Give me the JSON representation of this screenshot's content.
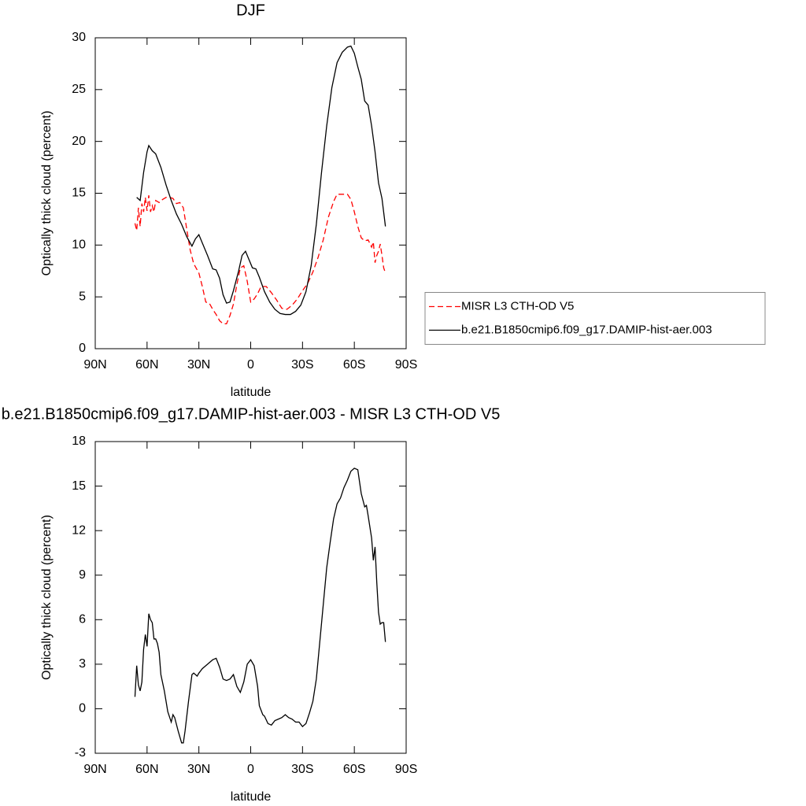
{
  "chart_data": [
    {
      "type": "line",
      "title": "DJF",
      "xlabel": "latitude",
      "ylabel": "Optically thick cloud (percent)",
      "xlim": [
        90,
        -90
      ],
      "ylim": [
        0,
        30
      ],
      "xticks": [
        {
          "value": 90,
          "label": "90N"
        },
        {
          "value": 60,
          "label": "60N"
        },
        {
          "value": 30,
          "label": "30N"
        },
        0,
        {
          "value": -30,
          "label": "30S"
        },
        {
          "value": -60,
          "label": "60S"
        },
        {
          "value": -90,
          "label": "90S"
        }
      ],
      "yticks": [
        0,
        5,
        10,
        15,
        20,
        25,
        30
      ],
      "legend": "right",
      "series": [
        {
          "name": "MISR L3 CTH-OD V5",
          "color": "#ff0000",
          "line_style": "dashed",
          "x": [
            67,
            66,
            65,
            64,
            63,
            62,
            61,
            60,
            59,
            58,
            57,
            56,
            55,
            53,
            51,
            49,
            47,
            45,
            43,
            41,
            39,
            37,
            35,
            33,
            30,
            28,
            26,
            24,
            22,
            20,
            18,
            16,
            14,
            12,
            10,
            8,
            6,
            4,
            2,
            0,
            -2,
            -4,
            -6,
            -9,
            -12,
            -15,
            -18,
            -21,
            -24,
            -27,
            -30,
            -33,
            -36,
            -39,
            -42,
            -45,
            -48,
            -50,
            -53,
            -56,
            -58,
            -60,
            -62,
            -64,
            -66,
            -68,
            -70,
            -71,
            -72,
            -73,
            -74,
            -75,
            -76,
            -77,
            -78
          ],
          "values": [
            12.1,
            11.4,
            13.6,
            11.8,
            14.0,
            13.2,
            14.6,
            13.3,
            14.8,
            13.2,
            13.8,
            13.2,
            14.3,
            14.1,
            14.4,
            14.6,
            14.6,
            14.5,
            14.0,
            14.1,
            13.6,
            11.5,
            9.5,
            8.2,
            7.3,
            6.0,
            4.5,
            4.4,
            3.8,
            3.3,
            2.7,
            2.4,
            2.4,
            3.2,
            4.3,
            6.2,
            7.8,
            8.0,
            6.5,
            4.5,
            4.8,
            5.3,
            6.0,
            6.0,
            5.4,
            4.7,
            3.9,
            3.8,
            4.2,
            4.8,
            5.6,
            6.3,
            7.4,
            8.8,
            10.5,
            12.7,
            14.2,
            14.9,
            14.9,
            14.9,
            14.4,
            13.2,
            11.8,
            10.7,
            10.4,
            10.5,
            9.8,
            10.3,
            8.3,
            9.0,
            9.4,
            10.1,
            9.0,
            7.8,
            7.3
          ]
        },
        {
          "name": "b.e21.B1850cmip6.f09_g17.DAMIP-hist-aer.003",
          "color": "#000000",
          "line_style": "solid",
          "x": [
            66,
            64,
            62,
            60,
            59,
            57,
            55,
            52,
            49,
            46,
            43,
            40,
            37,
            34,
            32,
            30,
            28,
            25,
            22,
            20,
            18,
            16,
            14,
            12,
            10,
            7,
            5,
            3,
            1,
            -1,
            -3,
            -5,
            -8,
            -11,
            -14,
            -17,
            -20,
            -23,
            -26,
            -29,
            -32,
            -35,
            -38,
            -41,
            -44,
            -47,
            -50,
            -53,
            -56,
            -58,
            -60,
            -62,
            -64,
            -66,
            -68,
            -70,
            -72,
            -74,
            -76,
            -78
          ],
          "values": [
            14.6,
            14.3,
            17.0,
            19.0,
            19.6,
            19.1,
            18.8,
            17.5,
            15.8,
            14.3,
            13.0,
            12.0,
            10.8,
            9.9,
            10.6,
            11.0,
            10.2,
            9.0,
            7.7,
            7.6,
            6.8,
            5.2,
            4.4,
            4.5,
            5.6,
            7.5,
            9.0,
            9.4,
            8.6,
            7.8,
            7.7,
            6.9,
            5.5,
            4.5,
            3.8,
            3.4,
            3.3,
            3.3,
            3.6,
            4.2,
            5.5,
            8.0,
            12.0,
            17.0,
            21.5,
            25.2,
            27.6,
            28.6,
            29.1,
            29.2,
            28.5,
            27.2,
            26.0,
            23.9,
            23.5,
            21.5,
            19.0,
            16.0,
            14.5,
            11.8
          ]
        }
      ]
    },
    {
      "type": "line",
      "title": "b.e21.B1850cmip6.f09_g17.DAMIP-hist-aer.003 - MISR L3 CTH-OD V5",
      "xlabel": "latitude",
      "ylabel": "Optically thick cloud (percent)",
      "xlim": [
        90,
        -90
      ],
      "ylim": [
        -3,
        18
      ],
      "xticks": [
        {
          "value": 90,
          "label": "90N"
        },
        {
          "value": 60,
          "label": "60N"
        },
        {
          "value": 30,
          "label": "30N"
        },
        0,
        {
          "value": -30,
          "label": "30S"
        },
        {
          "value": -60,
          "label": "60S"
        },
        {
          "value": -90,
          "label": "90S"
        }
      ],
      "yticks": [
        -3,
        0,
        3,
        6,
        9,
        12,
        15,
        18
      ],
      "series": [
        {
          "color": "#000000",
          "line_style": "solid",
          "x": [
            67,
            66,
            65,
            64,
            63,
            62,
            61,
            60,
            59,
            58,
            57,
            56,
            55,
            54,
            53,
            52,
            50,
            48,
            46,
            45,
            44,
            42,
            40,
            39,
            38,
            36,
            34,
            33,
            31,
            30,
            28,
            26,
            24,
            22,
            20,
            18,
            16,
            14,
            12,
            10,
            8,
            6,
            4,
            2,
            0,
            -2,
            -4,
            -5,
            -7,
            -8,
            -10,
            -12,
            -14,
            -16,
            -18,
            -20,
            -22,
            -24,
            -26,
            -28,
            -30,
            -32,
            -34,
            -36,
            -38,
            -40,
            -42,
            -44,
            -46,
            -48,
            -50,
            -52,
            -54,
            -56,
            -58,
            -60,
            -62,
            -64,
            -66,
            -67,
            -68,
            -70,
            -71,
            -72,
            -73,
            -74,
            -75,
            -76,
            -77,
            -78
          ],
          "values": [
            0.8,
            2.9,
            1.6,
            1.2,
            1.8,
            4.0,
            5.0,
            4.2,
            6.4,
            6.0,
            5.8,
            4.7,
            4.7,
            4.4,
            3.8,
            2.3,
            1.2,
            -0.2,
            -0.9,
            -0.4,
            -0.6,
            -1.5,
            -2.3,
            -2.3,
            -1.5,
            0.5,
            2.3,
            2.4,
            2.2,
            2.4,
            2.7,
            2.9,
            3.1,
            3.3,
            3.4,
            2.8,
            2.0,
            1.9,
            2.0,
            2.3,
            1.5,
            1.1,
            1.8,
            3.0,
            3.3,
            2.9,
            1.5,
            0.2,
            -0.4,
            -0.5,
            -1.0,
            -1.1,
            -0.8,
            -0.7,
            -0.6,
            -0.4,
            -0.6,
            -0.7,
            -0.9,
            -0.9,
            -1.2,
            -1.0,
            -0.3,
            0.5,
            2.0,
            4.5,
            7.0,
            9.5,
            11.2,
            12.8,
            13.8,
            14.2,
            14.9,
            15.4,
            16.0,
            16.2,
            16.1,
            14.5,
            13.6,
            13.7,
            13.0,
            11.5,
            10.0,
            10.9,
            8.5,
            6.5,
            5.7,
            5.8,
            5.8,
            4.5
          ]
        }
      ]
    }
  ]
}
